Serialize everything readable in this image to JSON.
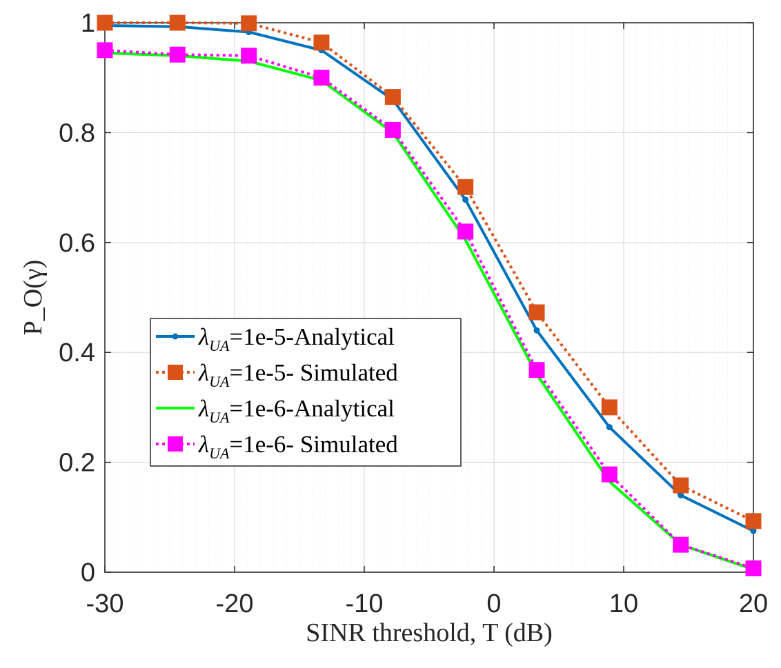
{
  "chart_data": {
    "type": "line",
    "title": "",
    "xlabel": "SINR threshold, T (dB)",
    "ylabel": "P_O(γ)",
    "xlim": [
      -30,
      20
    ],
    "ylim": [
      0,
      1
    ],
    "xticks": [
      -30,
      -20,
      -10,
      0,
      10,
      20
    ],
    "yticks": [
      0,
      0.2,
      0.4,
      0.6,
      0.8,
      1
    ],
    "xtick_labels": [
      "-30",
      "-20",
      "-10",
      "0",
      "10",
      "20"
    ],
    "ytick_labels": [
      "0",
      "0.2",
      "0.4",
      "0.6",
      "0.8",
      "1"
    ],
    "grid": true,
    "legend_position": "center-left",
    "series": [
      {
        "name": "λUA=1e-5-Analytical",
        "label_base": "λ",
        "label_sub": "UA",
        "label_rest": "=1e-5-Analytical",
        "color": "#0072BD",
        "line": "solid",
        "marker": "dot",
        "x": [
          -30,
          -24.4,
          -18.9,
          -13.3,
          -7.8,
          -2.2,
          3.3,
          8.9,
          14.4,
          20
        ],
        "values": [
          0.995,
          0.993,
          0.983,
          0.95,
          0.86,
          0.678,
          0.44,
          0.264,
          0.14,
          0.075
        ]
      },
      {
        "name": "λUA=1e-5- Simulated",
        "label_base": "λ",
        "label_sub": "UA",
        "label_rest": "=1e-5- Simulated",
        "color": "#D95319",
        "line": "dotted",
        "marker": "square",
        "x": [
          -30,
          -24.4,
          -18.9,
          -13.3,
          -7.8,
          -2.2,
          3.3,
          8.9,
          14.4,
          20
        ],
        "values": [
          1.0,
          1.0,
          0.999,
          0.964,
          0.865,
          0.701,
          0.473,
          0.3,
          0.158,
          0.093
        ]
      },
      {
        "name": "λUA=1e-6-Analytical",
        "label_base": "λ",
        "label_sub": "UA",
        "label_rest": "=1e-6-Analytical",
        "color": "#00FF00",
        "line": "solid",
        "marker": "none",
        "x": [
          -30,
          -24.4,
          -18.9,
          -13.3,
          -7.8,
          -2.2,
          3.3,
          8.9,
          14.4,
          20
        ],
        "values": [
          0.945,
          0.94,
          0.93,
          0.895,
          0.8,
          0.605,
          0.36,
          0.165,
          0.05,
          0.005
        ]
      },
      {
        "name": "λUA=1e-6- Simulated",
        "label_base": "λ",
        "label_sub": "UA",
        "label_rest": "=1e-6- Simulated",
        "color": "#FF00FF",
        "line": "dotted",
        "marker": "square",
        "x": [
          -30,
          -24.4,
          -18.9,
          -13.3,
          -7.8,
          -2.2,
          3.3,
          8.9,
          14.4,
          20
        ],
        "values": [
          0.95,
          0.942,
          0.94,
          0.9,
          0.805,
          0.62,
          0.368,
          0.178,
          0.05,
          0.007
        ]
      }
    ]
  }
}
